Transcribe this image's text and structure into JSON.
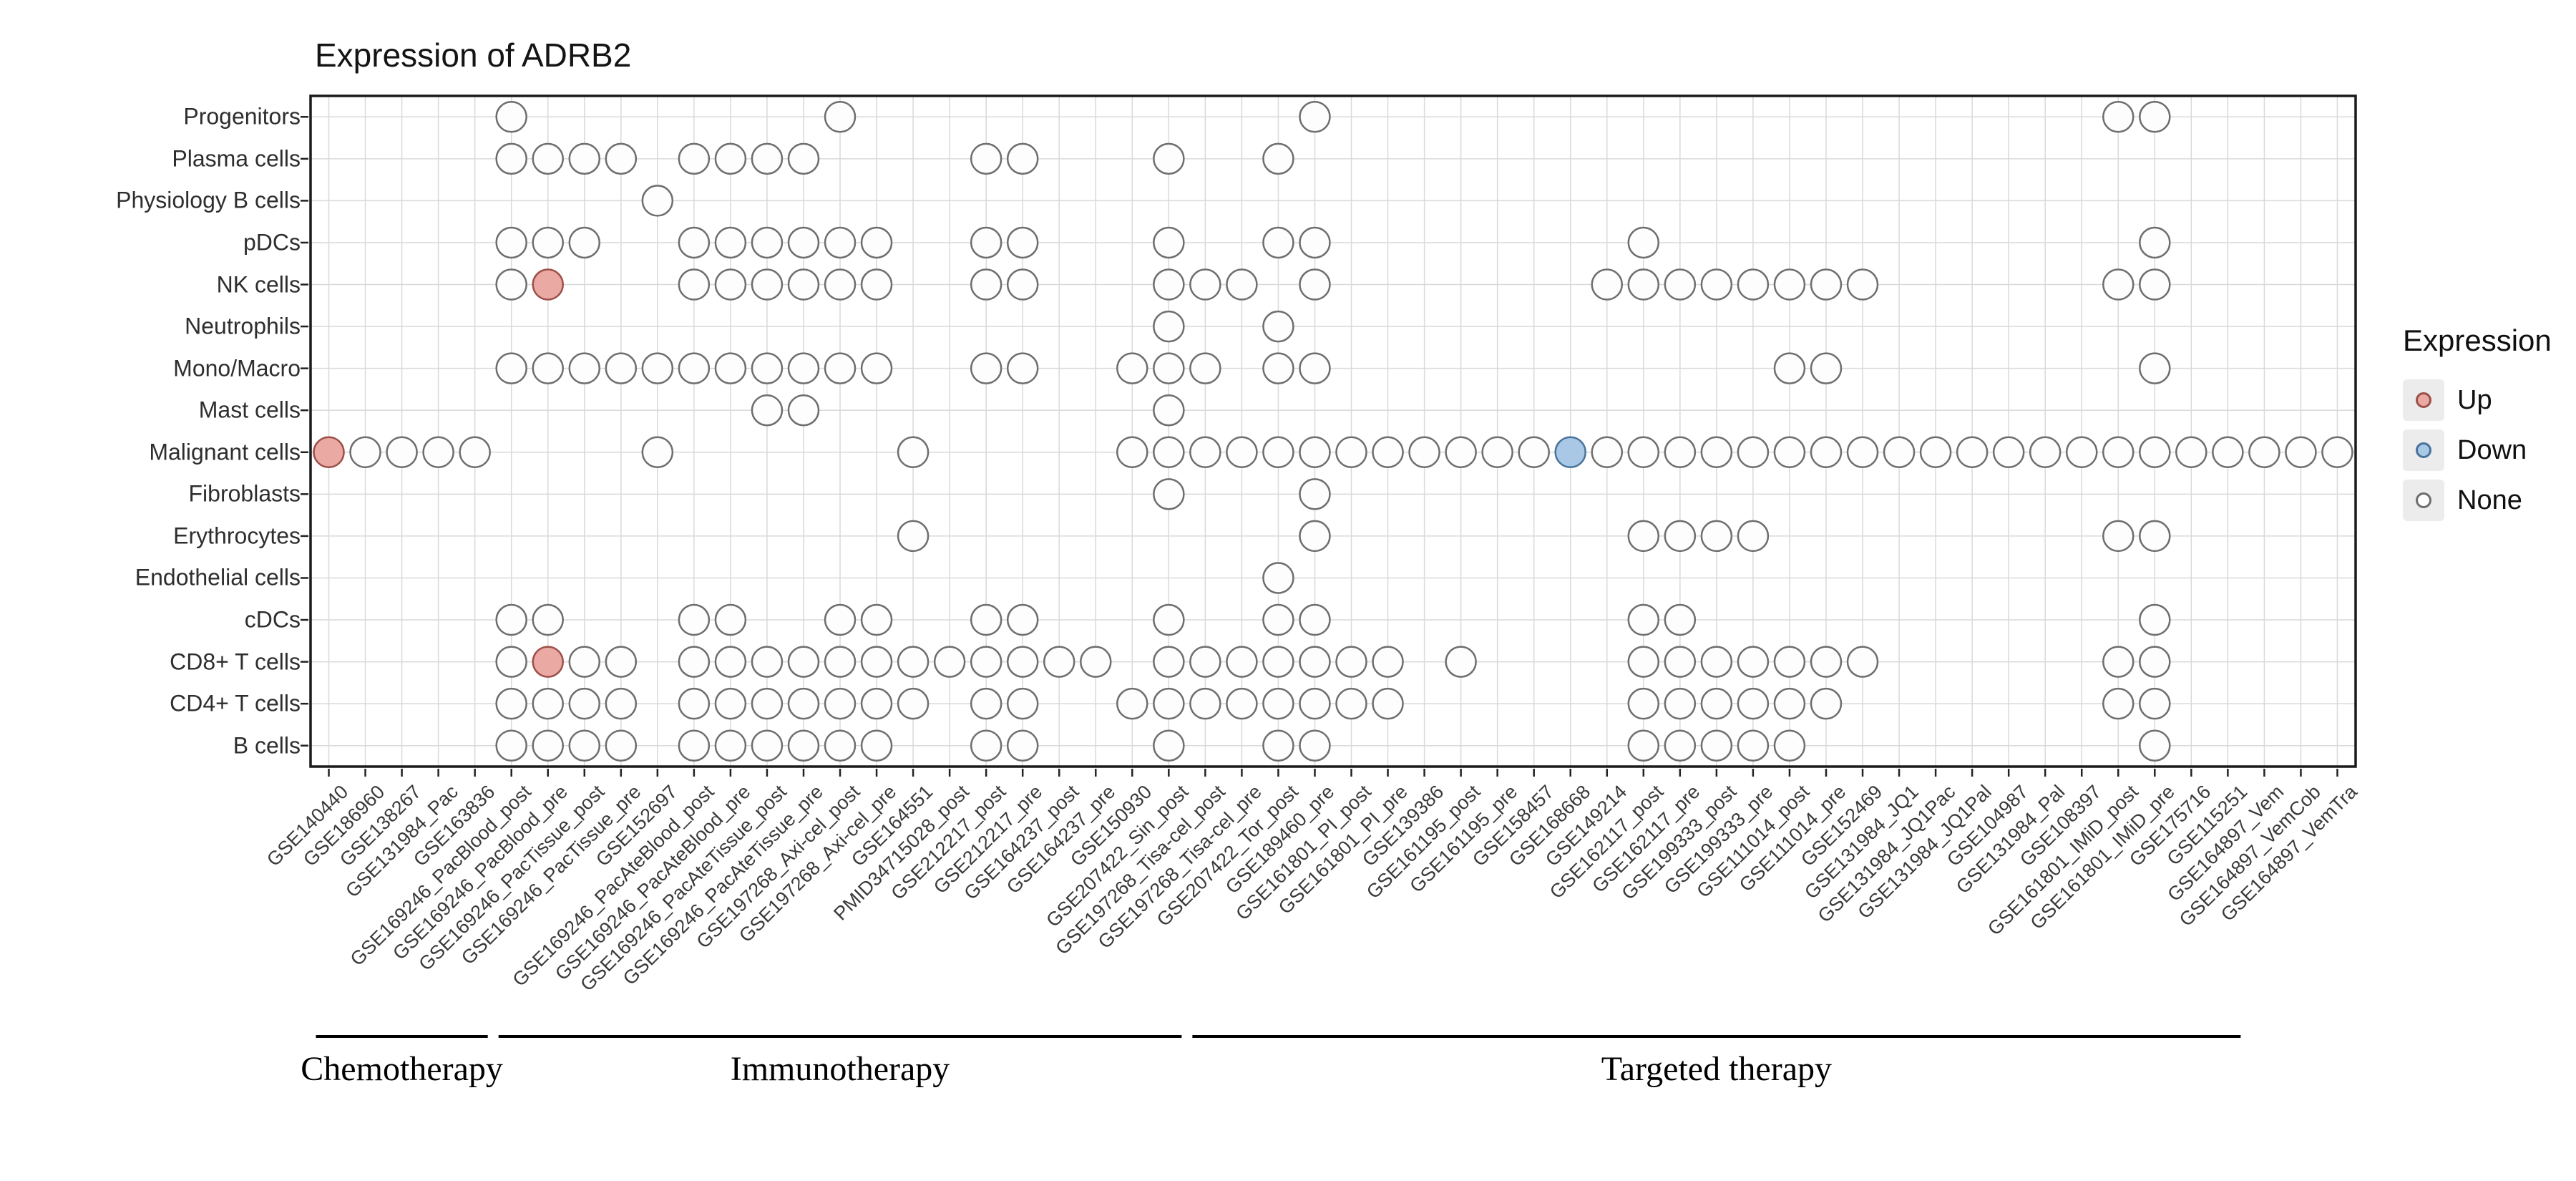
{
  "chart_data": {
    "type": "dot-matrix",
    "title": "Expression of ADRB2",
    "legend": {
      "title": "Expression",
      "entries": [
        {
          "label": "Up",
          "status": "up"
        },
        {
          "label": "Down",
          "status": "down"
        },
        {
          "label": "None",
          "status": "none"
        }
      ]
    },
    "colors": {
      "up": {
        "fill": "#EAA9A3",
        "stroke": "#9c5049"
      },
      "down": {
        "fill": "#A9C8E6",
        "stroke": "#49739c"
      },
      "none": {
        "fill": "#FDFDFD",
        "stroke": "#6e6e6e"
      },
      "grid": "#d9d9d9",
      "panel_border": "#1a1a1a"
    },
    "rows": [
      "Progenitors",
      "Plasma cells",
      "Physiology B cells",
      "pDCs",
      "NK cells",
      "Neutrophils",
      "Mono/Macro",
      "Mast cells",
      "Malignant cells",
      "Fibroblasts",
      "Erythrocytes",
      "Endothelial cells",
      "cDCs",
      "CD8+ T cells",
      "CD4+ T cells",
      "B cells"
    ],
    "columns": [
      "GSE140440",
      "GSE186960",
      "GSE138267",
      "GSE131984_Pac",
      "GSE163836",
      "GSE169246_PacBlood_post",
      "GSE169246_PacBlood_pre",
      "GSE169246_PacTissue_post",
      "GSE169246_PacTissue_pre",
      "GSE152697",
      "GSE169246_PacAteBlood_post",
      "GSE169246_PacAteBlood_pre",
      "GSE169246_PacAteTissue_post",
      "GSE169246_PacAteTissue_pre",
      "GSE197268_Axi-cel_post",
      "GSE197268_Axi-cel_pre",
      "GSE164551",
      "PMID34715028_post",
      "GSE212217_post",
      "GSE212217_pre",
      "GSE164237_post",
      "GSE164237_pre",
      "GSE150930",
      "GSE207422_Sin_post",
      "GSE197268_Tisa-cel_post",
      "GSE197268_Tisa-cel_pre",
      "GSE207422_Tor_post",
      "GSE189460_pre",
      "GSE161801_PI_post",
      "GSE161801_PI_pre",
      "GSE139386",
      "GSE161195_post",
      "GSE161195_pre",
      "GSE158457",
      "GSE168668",
      "GSE149214",
      "GSE162117_post",
      "GSE162117_pre",
      "GSE199333_post",
      "GSE199333_pre",
      "GSE111014_post",
      "GSE111014_pre",
      "GSE152469",
      "GSE131984_JQ1",
      "GSE131984_JQ1Pac",
      "GSE131984_JQ1Pal",
      "GSE104987",
      "GSE131984_Pal",
      "GSE108397",
      "GSE161801_IMiD_post",
      "GSE161801_IMiD_pre",
      "GSE175716",
      "GSE115251",
      "GSE164897_Vem",
      "GSE164897_VemCob",
      "GSE164897_VemTra"
    ],
    "groups": [
      {
        "label": "Chemotherapy",
        "start": 1,
        "end": 5
      },
      {
        "label": "Immunotherapy",
        "start": 6,
        "end": 24
      },
      {
        "label": "Targeted therapy",
        "start": 25,
        "end": 53
      }
    ],
    "matrix": [
      {
        "row": "Progenitors",
        "up": [],
        "down": [],
        "none": [
          6,
          15,
          28,
          50,
          51
        ]
      },
      {
        "row": "Plasma cells",
        "up": [],
        "down": [],
        "none": [
          6,
          7,
          8,
          9,
          11,
          12,
          13,
          14,
          19,
          20,
          24,
          27
        ]
      },
      {
        "row": "Physiology B cells",
        "up": [],
        "down": [],
        "none": [
          10
        ]
      },
      {
        "row": "pDCs",
        "up": [],
        "down": [],
        "none": [
          6,
          7,
          8,
          11,
          12,
          13,
          14,
          15,
          16,
          19,
          20,
          24,
          27,
          28,
          37,
          51
        ]
      },
      {
        "row": "NK cells",
        "up": [
          7
        ],
        "down": [],
        "none": [
          6,
          11,
          12,
          13,
          14,
          15,
          16,
          19,
          20,
          24,
          25,
          26,
          28,
          36,
          37,
          38,
          39,
          40,
          41,
          42,
          43,
          50,
          51
        ]
      },
      {
        "row": "Neutrophils",
        "up": [],
        "down": [],
        "none": [
          24,
          27
        ]
      },
      {
        "row": "Mono/Macro",
        "up": [],
        "down": [],
        "none": [
          6,
          7,
          8,
          9,
          10,
          11,
          12,
          13,
          14,
          15,
          16,
          19,
          20,
          23,
          24,
          25,
          27,
          28,
          41,
          42,
          51
        ]
      },
      {
        "row": "Mast cells",
        "up": [],
        "down": [],
        "none": [
          13,
          14,
          24
        ]
      },
      {
        "row": "Malignant cells",
        "up": [
          1
        ],
        "down": [
          35
        ],
        "none": [
          2,
          3,
          4,
          5,
          10,
          17,
          23,
          24,
          25,
          26,
          27,
          28,
          29,
          30,
          31,
          32,
          33,
          34,
          36,
          37,
          38,
          39,
          40,
          41,
          42,
          43,
          44,
          45,
          46,
          47,
          48,
          49,
          50,
          51,
          52,
          53,
          54,
          55,
          56
        ]
      },
      {
        "row": "Fibroblasts",
        "up": [],
        "down": [],
        "none": [
          24,
          28
        ]
      },
      {
        "row": "Erythrocytes",
        "up": [],
        "down": [],
        "none": [
          17,
          28,
          37,
          38,
          39,
          40,
          50,
          51
        ]
      },
      {
        "row": "Endothelial cells",
        "up": [],
        "down": [],
        "none": [
          27
        ]
      },
      {
        "row": "cDCs",
        "up": [],
        "down": [],
        "none": [
          6,
          7,
          11,
          12,
          15,
          16,
          19,
          20,
          24,
          27,
          28,
          37,
          38,
          51
        ]
      },
      {
        "row": "CD8+ T cells",
        "up": [
          7
        ],
        "down": [],
        "none": [
          6,
          8,
          9,
          11,
          12,
          13,
          14,
          15,
          16,
          17,
          18,
          19,
          20,
          21,
          22,
          24,
          25,
          26,
          27,
          28,
          29,
          30,
          32,
          37,
          38,
          39,
          40,
          41,
          42,
          43,
          50,
          51
        ]
      },
      {
        "row": "CD4+ T cells",
        "up": [],
        "down": [],
        "none": [
          6,
          7,
          8,
          9,
          11,
          12,
          13,
          14,
          15,
          16,
          17,
          19,
          20,
          23,
          24,
          25,
          26,
          27,
          28,
          29,
          30,
          37,
          38,
          39,
          40,
          41,
          42,
          50,
          51
        ]
      },
      {
        "row": "B cells",
        "up": [],
        "down": [],
        "none": [
          6,
          7,
          8,
          9,
          11,
          12,
          13,
          14,
          15,
          16,
          19,
          20,
          24,
          27,
          28,
          37,
          38,
          39,
          40,
          41,
          51
        ]
      }
    ]
  }
}
